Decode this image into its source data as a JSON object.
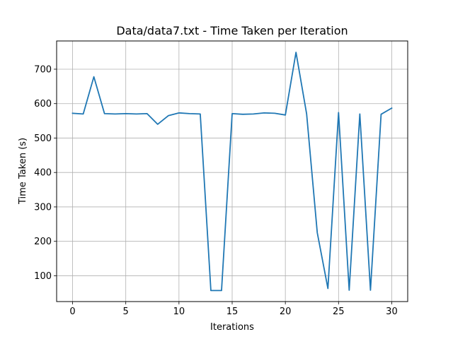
{
  "chart_data": {
    "type": "line",
    "title": "Data/data7.txt - Time Taken per Iteration",
    "xlabel": "Iterations",
    "ylabel": "Time Taken (s)",
    "xlim": [
      -1.5,
      31.5
    ],
    "ylim": [
      25,
      782
    ],
    "xticks": [
      0,
      5,
      10,
      15,
      20,
      25,
      30
    ],
    "yticks": [
      100,
      200,
      300,
      400,
      500,
      600,
      700
    ],
    "grid": true,
    "series_color": "#1f77b4",
    "x": [
      0,
      1,
      2,
      3,
      4,
      5,
      6,
      7,
      8,
      9,
      10,
      11,
      12,
      13,
      14,
      15,
      16,
      17,
      18,
      19,
      20,
      21,
      22,
      23,
      24,
      25,
      26,
      27,
      28,
      29,
      30
    ],
    "values": [
      572,
      570,
      678,
      571,
      570,
      571,
      570,
      571,
      540,
      565,
      573,
      571,
      570,
      57,
      57,
      571,
      569,
      570,
      573,
      572,
      567,
      749,
      570,
      225,
      63,
      574,
      58,
      570,
      58,
      569,
      587
    ]
  }
}
